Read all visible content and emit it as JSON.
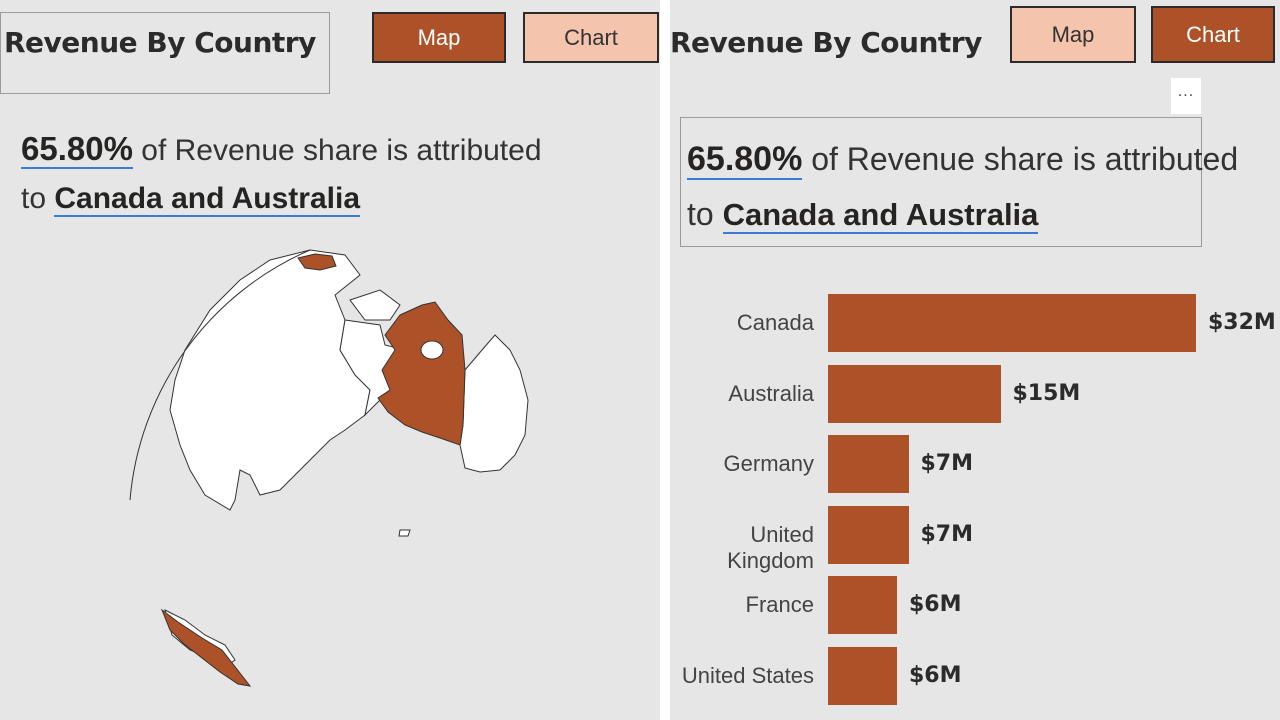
{
  "left": {
    "title": "Revenue By Country",
    "map_button": "Map",
    "chart_button": "Chart",
    "headline": {
      "pct": "65.80%",
      "text": " of Revenue share is attributed",
      "to": "to ",
      "countries": "Canada and Australia"
    },
    "highlight_color": "#ad5228"
  },
  "right": {
    "title": "Revenue By Country",
    "map_button": "Map",
    "chart_button": "Chart",
    "more_options": "···",
    "headline": {
      "pct": "65.80%",
      "text": " of Revenue share is attributed",
      "to": "to ",
      "countries": "Canada and Australia"
    }
  },
  "colors": {
    "accent": "#ad5228",
    "accent_light": "#f5c4ad",
    "background": "#e6e6e6",
    "underline": "#3a7bd5"
  },
  "chart_data": {
    "type": "bar",
    "orientation": "horizontal",
    "categories": [
      "Canada",
      "Australia",
      "Germany",
      "United Kingdom",
      "France",
      "United States"
    ],
    "values": [
      32,
      15,
      7,
      7,
      6,
      6
    ],
    "value_labels": [
      "$32M",
      "$15M",
      "$7M",
      "$7M",
      "$6M",
      "$6M"
    ],
    "title": "Revenue By Country",
    "xlabel": "",
    "ylabel": "",
    "xlim": [
      0,
      32
    ],
    "grid": false,
    "color": "#ad5228"
  }
}
